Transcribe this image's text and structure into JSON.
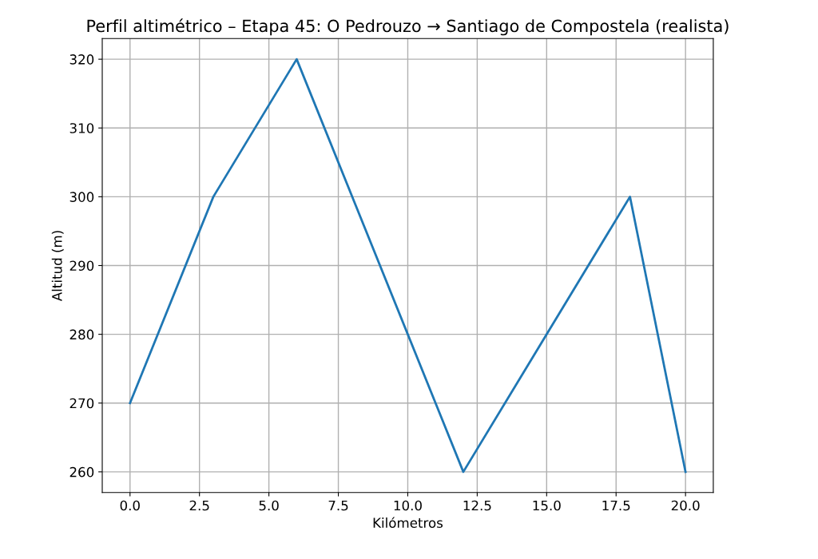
{
  "chart_data": {
    "type": "line",
    "title": "Perfil altimétrico – Etapa 45: O Pedrouzo → Santiago de Compostela (realista)",
    "xlabel": "Kilómetros",
    "ylabel": "Altitud (m)",
    "x": [
      0,
      3,
      6,
      12,
      18,
      20
    ],
    "series": [
      {
        "color": "#1f77b4",
        "values": [
          270,
          300,
          320,
          260,
          300,
          260
        ]
      }
    ],
    "xlim": [
      -1,
      21
    ],
    "ylim": [
      257,
      323
    ],
    "xticks": [
      {
        "value": 0,
        "label": "0.0"
      },
      2.5,
      {
        "value": 5,
        "label": "5.0"
      },
      7.5,
      {
        "value": 10,
        "label": "10.0"
      },
      12.5,
      {
        "value": 15,
        "label": "15.0"
      },
      17.5,
      {
        "value": 20,
        "label": "20.0"
      }
    ],
    "yticks": [
      260,
      270,
      280,
      290,
      300,
      310,
      320
    ],
    "grid": true
  }
}
